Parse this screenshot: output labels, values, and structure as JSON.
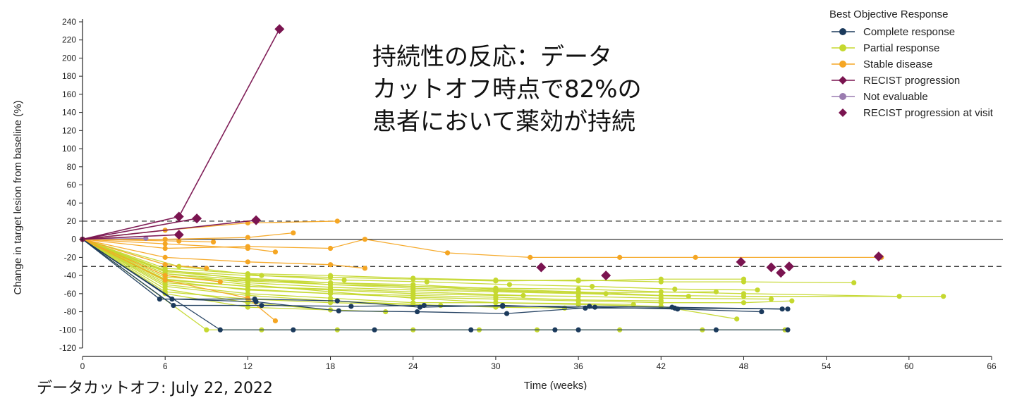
{
  "overlay": {
    "line1": "持続性の反応：データ",
    "line2": "カットオフ時点で82%の",
    "line3": "患者において薬効が持続"
  },
  "footnote": "データカットオフ: July 22, 2022",
  "colors": {
    "complete": "#1b3a5c",
    "partial": "#c5d82f",
    "stable": "#f5a623",
    "progression": "#7a1450",
    "not_evaluable": "#9a7cb0"
  },
  "chart_data": {
    "type": "line",
    "title": "",
    "xlabel": "Time (weeks)",
    "ylabel": "Change in target lesion from baseline (%)",
    "xlim": [
      0,
      66
    ],
    "ylim": [
      -120,
      240
    ],
    "xticks": [
      0,
      6,
      12,
      18,
      24,
      30,
      36,
      42,
      48,
      54,
      60,
      66
    ],
    "yticks": [
      -120,
      -100,
      -80,
      -60,
      -40,
      -20,
      0,
      20,
      40,
      60,
      80,
      100,
      120,
      140,
      160,
      180,
      200,
      220,
      240
    ],
    "reference_lines": [
      20,
      0,
      -30
    ],
    "legend": {
      "title": "Best Objective Response",
      "position": "top-right",
      "entries": [
        {
          "label": "Complete response",
          "marker": "circle",
          "color": "#1b3a5c"
        },
        {
          "label": "Partial response",
          "marker": "circle",
          "color": "#c5d82f"
        },
        {
          "label": "Stable disease",
          "marker": "circle",
          "color": "#f5a623"
        },
        {
          "label": "RECIST progression",
          "marker": "diamond",
          "color": "#7a1450"
        },
        {
          "label": "Not evaluable",
          "marker": "circle",
          "color": "#9a7cb0"
        },
        {
          "label": "RECIST progression at visit",
          "marker": "diamond-only",
          "color": "#7a1450"
        }
      ]
    },
    "series": [
      {
        "group": "complete",
        "points": [
          [
            0,
            0
          ],
          [
            5.6,
            -66
          ],
          [
            12.5,
            -66
          ],
          [
            18.5,
            -68
          ],
          [
            24.5,
            -75
          ],
          [
            30.5,
            -73
          ],
          [
            36.5,
            -76
          ],
          [
            43,
            -76
          ],
          [
            51.2,
            -77
          ]
        ]
      },
      {
        "group": "complete",
        "points": [
          [
            0,
            0
          ],
          [
            6.5,
            -66
          ],
          [
            12.6,
            -69
          ],
          [
            18.6,
            -79
          ],
          [
            24.3,
            -80
          ],
          [
            30.8,
            -82
          ],
          [
            37.2,
            -75
          ],
          [
            43.2,
            -77
          ],
          [
            49.3,
            -80
          ]
        ]
      },
      {
        "group": "complete",
        "points": [
          [
            0,
            0
          ],
          [
            6.6,
            -73
          ],
          [
            13,
            -73
          ],
          [
            19.5,
            -74
          ],
          [
            24.8,
            -73
          ],
          [
            30.5,
            -74
          ],
          [
            36.8,
            -74
          ],
          [
            42.8,
            -75
          ],
          [
            50.8,
            -77
          ]
        ]
      },
      {
        "group": "complete",
        "points": [
          [
            0,
            0
          ],
          [
            10,
            -100
          ],
          [
            15.3,
            -100
          ],
          [
            21.2,
            -100
          ],
          [
            28.2,
            -100
          ],
          [
            34.3,
            -100
          ],
          [
            36,
            -100
          ],
          [
            46,
            -100
          ],
          [
            51.2,
            -100
          ]
        ]
      },
      {
        "group": "partial",
        "points": [
          [
            0,
            0
          ],
          [
            9,
            -100
          ],
          [
            13,
            -100
          ],
          [
            18.5,
            -100
          ],
          [
            24,
            -100
          ],
          [
            28.8,
            -100
          ],
          [
            33,
            -100
          ],
          [
            39,
            -100
          ],
          [
            45,
            -100
          ],
          [
            51,
            -100
          ]
        ]
      },
      {
        "group": "partial",
        "points": [
          [
            0,
            0
          ],
          [
            6,
            -38
          ],
          [
            12,
            -45
          ],
          [
            18,
            -48
          ],
          [
            24,
            -50
          ],
          [
            30,
            -55
          ],
          [
            36,
            -58
          ],
          [
            42,
            -62
          ],
          [
            48,
            -63
          ],
          [
            62.5,
            -63
          ]
        ]
      },
      {
        "group": "partial",
        "points": [
          [
            0,
            0
          ],
          [
            6,
            -35
          ],
          [
            12,
            -40
          ],
          [
            18,
            -42
          ],
          [
            24,
            -44
          ],
          [
            30,
            -46
          ],
          [
            36,
            -45
          ],
          [
            42,
            -47
          ],
          [
            48,
            -47
          ],
          [
            56,
            -48
          ]
        ]
      },
      {
        "group": "partial",
        "points": [
          [
            0,
            0
          ],
          [
            6,
            -42
          ],
          [
            12,
            -46
          ],
          [
            18,
            -50
          ],
          [
            24,
            -52
          ],
          [
            30,
            -54
          ],
          [
            36,
            -55
          ],
          [
            42,
            -58
          ],
          [
            48,
            -60
          ],
          [
            59.3,
            -63
          ]
        ]
      },
      {
        "group": "partial",
        "points": [
          [
            0,
            0
          ],
          [
            6,
            -45
          ],
          [
            12,
            -52
          ],
          [
            18,
            -56
          ],
          [
            24,
            -60
          ],
          [
            30,
            -62
          ],
          [
            36,
            -63
          ],
          [
            42,
            -65
          ],
          [
            50,
            -66
          ]
        ]
      },
      {
        "group": "partial",
        "points": [
          [
            0,
            0
          ],
          [
            6,
            -48
          ],
          [
            12,
            -55
          ],
          [
            18,
            -60
          ],
          [
            24,
            -64
          ],
          [
            30,
            -66
          ],
          [
            36,
            -68
          ],
          [
            42,
            -70
          ],
          [
            48,
            -70
          ],
          [
            51.5,
            -68
          ]
        ]
      },
      {
        "group": "partial",
        "points": [
          [
            0,
            0
          ],
          [
            6,
            -40
          ],
          [
            12,
            -50
          ],
          [
            18,
            -58
          ],
          [
            24,
            -65
          ],
          [
            30,
            -70
          ],
          [
            36,
            -72
          ],
          [
            42,
            -74
          ],
          [
            47.5,
            -88
          ]
        ]
      },
      {
        "group": "partial",
        "points": [
          [
            0,
            0
          ],
          [
            7,
            -30
          ],
          [
            13,
            -40
          ],
          [
            19,
            -45
          ],
          [
            25,
            -47
          ],
          [
            31,
            -50
          ],
          [
            37,
            -52
          ],
          [
            43,
            -55
          ],
          [
            49,
            -56
          ]
        ]
      },
      {
        "group": "partial",
        "points": [
          [
            0,
            0
          ],
          [
            6,
            -50
          ],
          [
            12,
            -60
          ],
          [
            18,
            -65
          ],
          [
            24,
            -70
          ],
          [
            30,
            -70
          ],
          [
            36,
            -71
          ],
          [
            40,
            -72
          ]
        ]
      },
      {
        "group": "partial",
        "points": [
          [
            0,
            0
          ],
          [
            6,
            -36
          ],
          [
            12,
            -43
          ],
          [
            18,
            -48
          ],
          [
            24,
            -52
          ],
          [
            30,
            -56
          ],
          [
            38,
            -60
          ]
        ]
      },
      {
        "group": "partial",
        "points": [
          [
            0,
            0
          ],
          [
            6,
            -44
          ],
          [
            12,
            -52
          ],
          [
            18,
            -55
          ],
          [
            24,
            -58
          ],
          [
            32,
            -62
          ]
        ]
      },
      {
        "group": "partial",
        "points": [
          [
            0,
            0
          ],
          [
            6,
            -52
          ],
          [
            12,
            -62
          ],
          [
            18,
            -68
          ],
          [
            26,
            -73
          ]
        ]
      },
      {
        "group": "partial",
        "points": [
          [
            0,
            0
          ],
          [
            6,
            -55
          ],
          [
            12,
            -70
          ],
          [
            18,
            -78
          ]
        ]
      },
      {
        "group": "partial",
        "points": [
          [
            0,
            0
          ],
          [
            6,
            -60
          ],
          [
            12,
            -75
          ],
          [
            22,
            -80
          ]
        ]
      },
      {
        "group": "partial",
        "points": [
          [
            0,
            0
          ],
          [
            6,
            -32
          ],
          [
            12,
            -38
          ],
          [
            18,
            -40
          ],
          [
            24,
            -43
          ],
          [
            30,
            -45
          ],
          [
            36,
            -46
          ],
          [
            42,
            -44
          ],
          [
            48,
            -44
          ]
        ]
      },
      {
        "group": "partial",
        "points": [
          [
            0,
            0
          ],
          [
            6,
            -38
          ],
          [
            12,
            -48
          ],
          [
            18,
            -53
          ],
          [
            24,
            -56
          ],
          [
            30,
            -58
          ],
          [
            36,
            -60
          ],
          [
            44,
            -63
          ]
        ]
      },
      {
        "group": "partial",
        "points": [
          [
            0,
            0
          ],
          [
            6,
            -46
          ],
          [
            12,
            -56
          ],
          [
            18,
            -60
          ],
          [
            24,
            -62
          ],
          [
            30,
            -64
          ],
          [
            36,
            -67
          ],
          [
            42,
            -68
          ]
        ]
      },
      {
        "group": "partial",
        "points": [
          [
            0,
            0
          ],
          [
            6,
            -34
          ],
          [
            12,
            -44
          ],
          [
            18,
            -50
          ],
          [
            24,
            -54
          ],
          [
            30,
            -57
          ],
          [
            36,
            -59
          ],
          [
            46,
            -58
          ]
        ]
      },
      {
        "group": "partial",
        "points": [
          [
            0,
            0
          ],
          [
            6,
            -58
          ],
          [
            12,
            -66
          ],
          [
            18,
            -70
          ],
          [
            24,
            -72
          ],
          [
            30,
            -75
          ],
          [
            35,
            -76
          ]
        ]
      },
      {
        "group": "stable",
        "points": [
          [
            0,
            0
          ],
          [
            6,
            -10
          ],
          [
            12,
            -8
          ],
          [
            18,
            -10
          ],
          [
            20.5,
            0
          ],
          [
            26.5,
            -15
          ],
          [
            32.5,
            -20
          ],
          [
            39,
            -20
          ],
          [
            44.5,
            -20
          ],
          [
            58,
            -20
          ]
        ]
      },
      {
        "group": "stable",
        "points": [
          [
            0,
            0
          ],
          [
            6,
            10
          ],
          [
            12,
            18
          ],
          [
            18.5,
            20
          ]
        ]
      },
      {
        "group": "stable",
        "points": [
          [
            0,
            0
          ],
          [
            6,
            0
          ],
          [
            12,
            2
          ],
          [
            15.3,
            7
          ]
        ]
      },
      {
        "group": "stable",
        "points": [
          [
            0,
            0
          ],
          [
            6,
            -5
          ],
          [
            12,
            -10
          ],
          [
            14,
            -14
          ]
        ]
      },
      {
        "group": "stable",
        "points": [
          [
            0,
            0
          ],
          [
            6,
            -20
          ],
          [
            12,
            -25
          ],
          [
            18,
            -28
          ],
          [
            20.5,
            -32
          ]
        ]
      },
      {
        "group": "stable",
        "points": [
          [
            0,
            0
          ],
          [
            6,
            -28
          ],
          [
            9,
            -32
          ]
        ]
      },
      {
        "group": "stable",
        "points": [
          [
            0,
            0
          ],
          [
            6,
            -40
          ],
          [
            10,
            -47
          ]
        ]
      },
      {
        "group": "stable",
        "points": [
          [
            0,
            0
          ],
          [
            6,
            -45
          ],
          [
            12,
            -65
          ],
          [
            14,
            -90
          ]
        ]
      },
      {
        "group": "stable",
        "points": [
          [
            0,
            0
          ],
          [
            7,
            -2
          ],
          [
            9.5,
            -3
          ]
        ]
      },
      {
        "group": "progression",
        "points": [
          [
            0,
            0
          ],
          [
            7,
            25
          ],
          [
            14.3,
            232
          ]
        ]
      },
      {
        "group": "progression",
        "points": [
          [
            0,
            0
          ],
          [
            8.3,
            23
          ]
        ]
      },
      {
        "group": "progression",
        "points": [
          [
            0,
            0
          ],
          [
            7,
            5
          ]
        ]
      },
      {
        "group": "progression",
        "points": [
          [
            0,
            0
          ],
          [
            12.6,
            21
          ]
        ]
      },
      {
        "group": "not_evaluable",
        "points": [
          [
            0,
            0
          ],
          [
            4.6,
            1
          ]
        ]
      }
    ],
    "progression_at_visit": [
      [
        7,
        25
      ],
      [
        8.3,
        23
      ],
      [
        12.6,
        21
      ],
      [
        14.3,
        232
      ],
      [
        7,
        5
      ],
      [
        33.3,
        -31
      ],
      [
        38,
        -40
      ],
      [
        47.8,
        -25
      ],
      [
        50,
        -31
      ],
      [
        50.7,
        -37
      ],
      [
        51.3,
        -30
      ],
      [
        57.8,
        -19
      ]
    ]
  }
}
